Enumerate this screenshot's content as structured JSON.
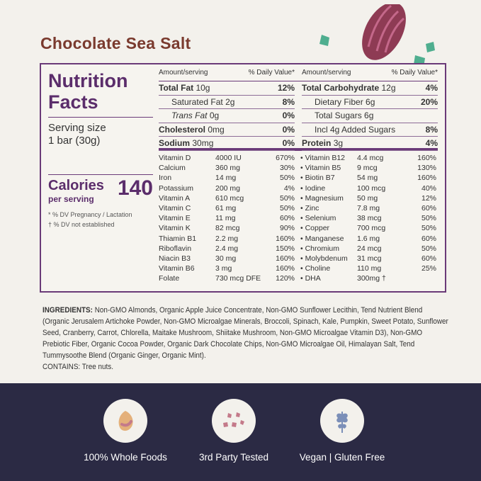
{
  "title": "Chocolate Sea Salt",
  "facts": {
    "heading1": "Nutrition",
    "heading2": "Facts",
    "serving_label": "Serving size",
    "serving_value": "1 bar (30g)",
    "calories_label": "Calories",
    "per_serving": "per serving",
    "calories": "140",
    "note1": "* % DV Pregnancy / Lactation",
    "note2": "† % DV not established"
  },
  "header": {
    "amount": "Amount/serving",
    "dv": "% Daily Value*"
  },
  "macros_left": [
    {
      "name": "Total Fat",
      "amt": "10g",
      "pct": "12%",
      "bold": true,
      "indent": false
    },
    {
      "name": "Saturated Fat",
      "amt": "2g",
      "pct": "8%",
      "bold": false,
      "indent": true
    },
    {
      "name": "Trans Fat",
      "amt": "0g",
      "pct": "0%",
      "bold": false,
      "indent": true,
      "italic": true
    },
    {
      "name": "Cholesterol",
      "amt": "0mg",
      "pct": "0%",
      "bold": true,
      "indent": false
    },
    {
      "name": "Sodium",
      "amt": "30mg",
      "pct": "0%",
      "bold": true,
      "indent": false
    }
  ],
  "macros_right": [
    {
      "name": "Total Carbohydrate",
      "amt": "12g",
      "pct": "4%",
      "bold": true,
      "indent": false
    },
    {
      "name": "Dietary Fiber",
      "amt": "6g",
      "pct": "20%",
      "bold": false,
      "indent": true
    },
    {
      "name": "Total Sugars",
      "amt": "6g",
      "pct": "",
      "bold": false,
      "indent": true
    },
    {
      "name": "Incl 4g Added Sugars",
      "amt": "",
      "pct": "8%",
      "bold": false,
      "indent": true
    },
    {
      "name": "Protein",
      "amt": "3g",
      "pct": "4%",
      "bold": true,
      "indent": false
    }
  ],
  "vitamins_left": [
    [
      "Vitamin D",
      "4000 IU",
      "670%"
    ],
    [
      "Calcium",
      "360 mg",
      "30%"
    ],
    [
      "Iron",
      "14 mg",
      "50%"
    ],
    [
      "Potassium",
      "200 mg",
      "4%"
    ],
    [
      "Vitamin A",
      "610 mcg",
      "50%"
    ],
    [
      "Vitamin C",
      "61 mg",
      "50%"
    ],
    [
      "Vitamin E",
      "11 mg",
      "60%"
    ],
    [
      "Vitamin K",
      "82 mcg",
      "90%"
    ],
    [
      "Thiamin B1",
      "2.2 mg",
      "160%"
    ],
    [
      "Riboflavin",
      "2.4 mg",
      "150%"
    ],
    [
      "Niacin B3",
      "30 mg",
      "160%"
    ],
    [
      "Vitamin B6",
      "3 mg",
      "160%"
    ],
    [
      "Folate",
      "730 mcg DFE",
      "120%"
    ]
  ],
  "vitamins_right": [
    [
      "Vitamin B12",
      "4.4 mcg",
      "160%"
    ],
    [
      "Vitamin B5",
      "9 mcg",
      "130%"
    ],
    [
      "Biotin B7",
      "54 mg",
      "160%"
    ],
    [
      "Iodine",
      "100 mcg",
      "40%"
    ],
    [
      "Magnesium",
      "50 mg",
      "12%"
    ],
    [
      "Zinc",
      "7.8 mg",
      "60%"
    ],
    [
      "Selenium",
      "38 mcg",
      "50%"
    ],
    [
      "Copper",
      "700 mcg",
      "50%"
    ],
    [
      "Manganese",
      "1.6 mg",
      "60%"
    ],
    [
      "Chromium",
      "24 mcg",
      "50%"
    ],
    [
      "Molybdenum",
      "31 mcg",
      "60%"
    ],
    [
      "Choline",
      "110 mg",
      "25%"
    ],
    [
      "DHA",
      "300mg †",
      ""
    ]
  ],
  "ingredients": {
    "label": "INGREDIENTS:",
    "text": "Non-GMO Almonds, Organic Apple Juice Concentrate, Non-GMO Sunflower Lecithin, Tend Nutrient Blend (Organic Jerusalem Artichoke Powder, Non-GMO Microalgae Minerals, Broccoli, Spinach, Kale, Pumpkin, Sweet Potato, Sunflower Seed, Cranberry, Carrot, Chlorella, Maitake Mushroom, Shiitake Mushroom, Non-GMO Microalgae Vitamin D3), Non-GMO Prebiotic Fiber, Organic Cocoa Powder, Organic Dark Chocolate Chips, Non-GMO Microalgae Oil, Himalayan Salt, Tend Tummysoothe Blend (Organic Ginger, Organic Mint).",
    "contains": "CONTAINS: Tree nuts."
  },
  "badges": [
    {
      "label": "100% Whole Foods",
      "icon": "almond-icon"
    },
    {
      "label": "3rd Party Tested",
      "icon": "crystals-icon"
    },
    {
      "label": "Vegan | Gluten Free",
      "icon": "leaf-icon"
    }
  ],
  "colors": {
    "brand_purple": "#5b2d6b",
    "title_brown": "#7a3a2e",
    "band": "#2b2a44",
    "accent_teal": "#4fae8f"
  }
}
